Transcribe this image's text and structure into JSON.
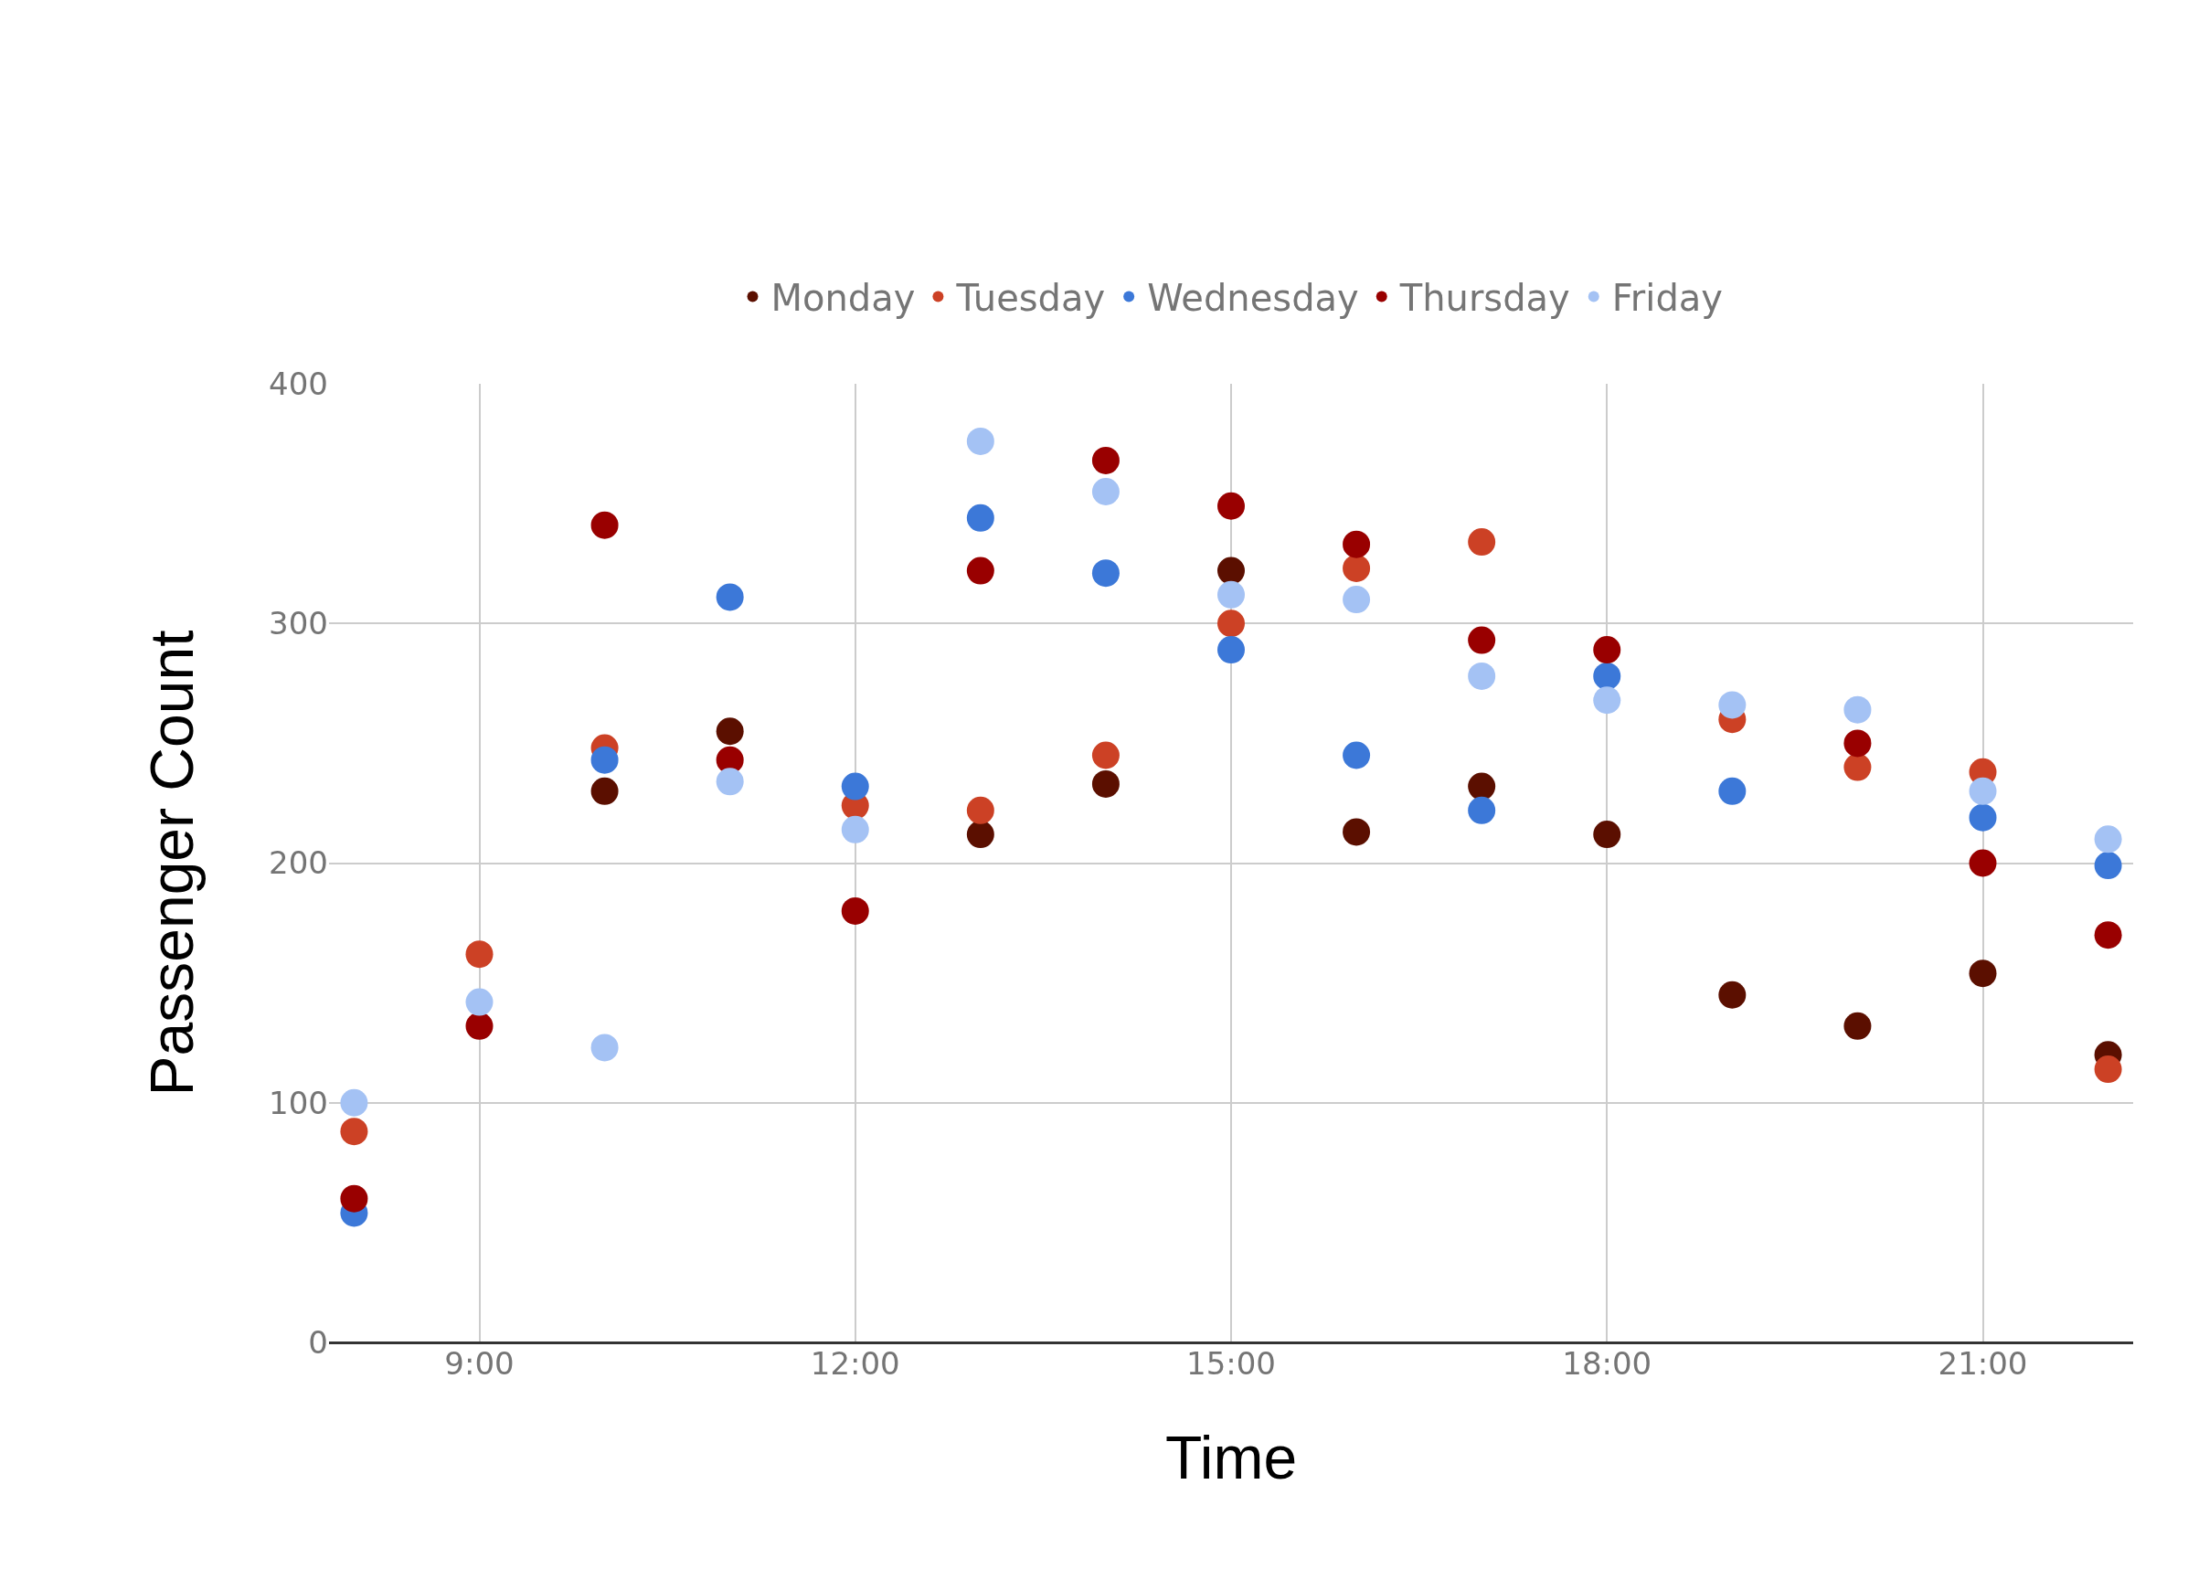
{
  "chart_data": {
    "type": "scatter",
    "xlabel": "Time",
    "ylabel": "Passenger Count",
    "x": [
      8,
      9,
      10,
      11,
      12,
      13,
      14,
      15,
      16,
      17,
      18,
      19,
      20,
      21,
      22
    ],
    "series": [
      {
        "name": "Monday",
        "color": "#5b0f00",
        "values": [
          null,
          null,
          230,
          255,
          null,
          212,
          233,
          322,
          213,
          232,
          212,
          145,
          132,
          154,
          120
        ]
      },
      {
        "name": "Tuesday",
        "color": "#cc4125",
        "values": [
          88,
          162,
          248,
          null,
          224,
          222,
          245,
          300,
          323,
          334,
          null,
          260,
          240,
          238,
          114
        ]
      },
      {
        "name": "Wednesday",
        "color": "#3c78d8",
        "values": [
          54,
          null,
          243,
          311,
          232,
          344,
          321,
          289,
          245,
          222,
          278,
          230,
          null,
          219,
          199
        ]
      },
      {
        "name": "Thursday",
        "color": "#990000",
        "values": [
          60,
          132,
          341,
          243,
          180,
          322,
          368,
          349,
          333,
          293,
          289,
          null,
          250,
          200,
          170
        ]
      },
      {
        "name": "Friday",
        "color": "#a4c2f4",
        "values": [
          100,
          142,
          123,
          234,
          214,
          376,
          355,
          312,
          310,
          278,
          268,
          266,
          264,
          230,
          210
        ]
      }
    ],
    "xlim": [
      7.8,
      22.2
    ],
    "xticks": [
      {
        "value": 9,
        "label": "9:00"
      },
      {
        "value": 12,
        "label": "12:00"
      },
      {
        "value": 15,
        "label": "15:00"
      },
      {
        "value": 18,
        "label": "18:00"
      },
      {
        "value": 21,
        "label": "21:00"
      }
    ],
    "ylim": [
      0,
      400
    ],
    "yticks": [
      0,
      100,
      200,
      300,
      400
    ],
    "grid": true,
    "legend": "top",
    "marker": "circle"
  }
}
